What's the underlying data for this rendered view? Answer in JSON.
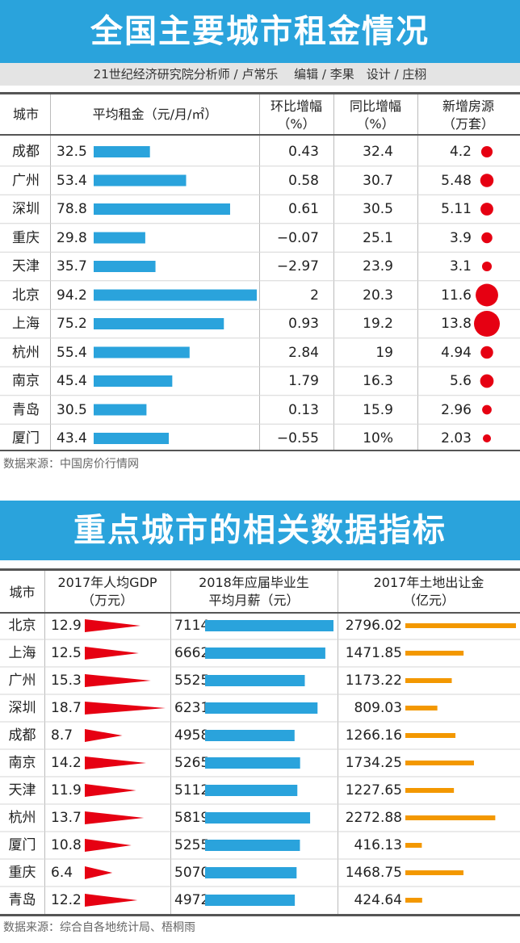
{
  "table1": {
    "title": "全国主要城市租金情况",
    "credit": "21世纪经济研究院分析师 / 卢常乐　 编辑 / 李果　设计 / 庄栩",
    "headers": {
      "city": "城市",
      "rent": "平均租金（元/月/㎡）",
      "mom_l1": "环比增幅",
      "mom_l2": "（%）",
      "yoy_l1": "同比增幅",
      "yoy_l2": "（%）",
      "supply_l1": "新增房源",
      "supply_l2": "（万套）"
    },
    "source": "数据来源：中国房价行情网",
    "colors": {
      "bar": "#2aa3dc",
      "dot": "#e60012"
    }
  },
  "table2": {
    "title": "重点城市的相关数据指标",
    "headers": {
      "city": "城市",
      "gdp_l1": "2017年人均GDP",
      "gdp_l2": "（万元）",
      "salary_l1": "2018年应届毕业生",
      "salary_l2": "平均月薪（元）",
      "land_l1": "2017年土地出让金",
      "land_l2": "（亿元）"
    },
    "source": "数据来源：综合自各地统计局、梧桐雨",
    "colors": {
      "triangle": "#e60012",
      "salary_bar": "#2aa3dc",
      "land_bar": "#f39800"
    }
  },
  "chart_data": [
    {
      "type": "table",
      "title": "全国主要城市租金情况",
      "columns": [
        "城市",
        "平均租金（元/月/㎡）",
        "环比增幅（%）",
        "同比增幅（%）",
        "新增房源（万套）"
      ],
      "rows": [
        {
          "city": "成都",
          "rent": 32.5,
          "rent_label": "32.5",
          "mom": "0.43",
          "yoy": "32.4",
          "supply": 4.2,
          "supply_label": "4.2"
        },
        {
          "city": "广州",
          "rent": 53.4,
          "rent_label": "53.4",
          "mom": "0.58",
          "yoy": "30.7",
          "supply": 5.48,
          "supply_label": "5.48"
        },
        {
          "city": "深圳",
          "rent": 78.8,
          "rent_label": "78.8",
          "mom": "0.61",
          "yoy": "30.5",
          "supply": 5.11,
          "supply_label": "5.11"
        },
        {
          "city": "重庆",
          "rent": 29.8,
          "rent_label": "29.8",
          "mom": "−0.07",
          "yoy": "25.1",
          "supply": 3.9,
          "supply_label": "3.9"
        },
        {
          "city": "天津",
          "rent": 35.7,
          "rent_label": "35.7",
          "mom": "−2.97",
          "yoy": "23.9",
          "supply": 3.1,
          "supply_label": "3.1"
        },
        {
          "city": "北京",
          "rent": 94.2,
          "rent_label": "94.2",
          "mom": "2",
          "yoy": "20.3",
          "supply": 11.6,
          "supply_label": "11.6"
        },
        {
          "city": "上海",
          "rent": 75.2,
          "rent_label": "75.2",
          "mom": "0.93",
          "yoy": "19.2",
          "supply": 13.8,
          "supply_label": "13.8"
        },
        {
          "city": "杭州",
          "rent": 55.4,
          "rent_label": "55.4",
          "mom": "2.84",
          "yoy": "19",
          "supply": 4.94,
          "supply_label": "4.94"
        },
        {
          "city": "南京",
          "rent": 45.4,
          "rent_label": "45.4",
          "mom": "1.79",
          "yoy": "16.3",
          "supply": 5.6,
          "supply_label": "5.6"
        },
        {
          "city": "青岛",
          "rent": 30.5,
          "rent_label": "30.5",
          "mom": "0.13",
          "yoy": "15.9",
          "supply": 2.96,
          "supply_label": "2.96"
        },
        {
          "city": "厦门",
          "rent": 43.4,
          "rent_label": "43.4",
          "mom": "−0.55",
          "yoy": "10%",
          "supply": 2.03,
          "supply_label": "2.03"
        }
      ]
    },
    {
      "type": "table",
      "title": "重点城市的相关数据指标",
      "columns": [
        "城市",
        "2017年人均GDP（万元）",
        "2018年应届毕业生平均月薪（元）",
        "2017年土地出让金（亿元）"
      ],
      "rows": [
        {
          "city": "北京",
          "gdp": 12.9,
          "gdp_label": "12.9",
          "salary": 7114,
          "salary_label": "7114",
          "land": 2796.02,
          "land_label": "2796.02"
        },
        {
          "city": "上海",
          "gdp": 12.5,
          "gdp_label": "12.5",
          "salary": 6662,
          "salary_label": "6662",
          "land": 1471.85,
          "land_label": "1471.85"
        },
        {
          "city": "广州",
          "gdp": 15.3,
          "gdp_label": "15.3",
          "salary": 5525,
          "salary_label": "5525",
          "land": 1173.22,
          "land_label": "1173.22"
        },
        {
          "city": "深圳",
          "gdp": 18.7,
          "gdp_label": "18.7",
          "salary": 6231,
          "salary_label": "6231",
          "land": 809.03,
          "land_label": "809.03"
        },
        {
          "city": "成都",
          "gdp": 8.7,
          "gdp_label": "8.7",
          "salary": 4958,
          "salary_label": "4958",
          "land": 1266.16,
          "land_label": "1266.16"
        },
        {
          "city": "南京",
          "gdp": 14.2,
          "gdp_label": "14.2",
          "salary": 5265,
          "salary_label": "5265",
          "land": 1734.25,
          "land_label": "1734.25"
        },
        {
          "city": "天津",
          "gdp": 11.9,
          "gdp_label": "11.9",
          "salary": 5112,
          "salary_label": "5112",
          "land": 1227.65,
          "land_label": "1227.65"
        },
        {
          "city": "杭州",
          "gdp": 13.7,
          "gdp_label": "13.7",
          "salary": 5819,
          "salary_label": "5819",
          "land": 2272.88,
          "land_label": "2272.88"
        },
        {
          "city": "厦门",
          "gdp": 10.8,
          "gdp_label": "10.8",
          "salary": 5255,
          "salary_label": "5255",
          "land": 416.13,
          "land_label": "416.13"
        },
        {
          "city": "重庆",
          "gdp": 6.4,
          "gdp_label": "6.4",
          "salary": 5070,
          "salary_label": "5070",
          "land": 1468.75,
          "land_label": "1468.75"
        },
        {
          "city": "青岛",
          "gdp": 12.2,
          "gdp_label": "12.2",
          "salary": 4972,
          "salary_label": "4972",
          "land": 424.64,
          "land_label": "424.64"
        }
      ]
    }
  ]
}
